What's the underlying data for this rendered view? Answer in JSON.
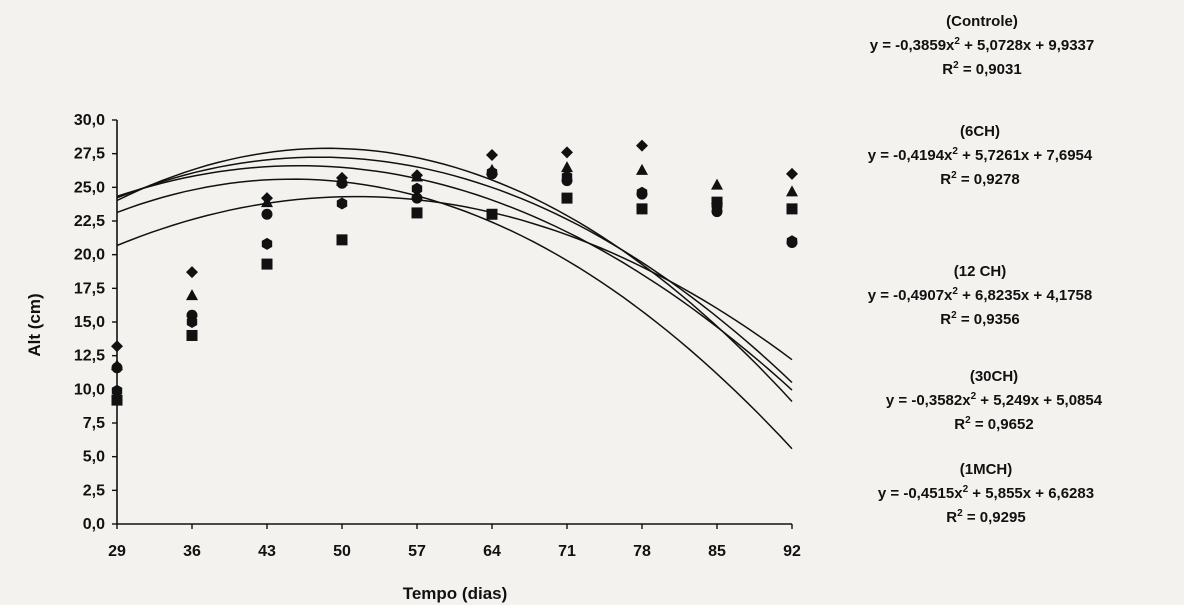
{
  "chart_data": {
    "type": "scatter",
    "xlabel": "Tempo (dias)",
    "ylabel": "Alt (cm)",
    "x_ticks": [
      "29",
      "36",
      "43",
      "50",
      "57",
      "64",
      "71",
      "78",
      "85",
      "92"
    ],
    "y_ticks": [
      "0,0",
      "2,5",
      "5,0",
      "7,5",
      "10,0",
      "12,5",
      "15,0",
      "17,5",
      "20,0",
      "22,5",
      "25,0",
      "27,5",
      "30,0"
    ],
    "xlim": [
      29,
      92
    ],
    "ylim": [
      0,
      30
    ],
    "grid": false,
    "x": [
      29,
      36,
      43,
      50,
      57,
      64,
      71,
      78,
      85,
      92
    ],
    "series": [
      {
        "name": "Controle",
        "marker": "diamond",
        "values": [
          13.2,
          18.7,
          24.2,
          25.7,
          25.9,
          27.4,
          27.6,
          28.1,
          23.8,
          26.0
        ],
        "fit": {
          "a": -0.3859,
          "b": 5.0728,
          "c": 9.9337
        },
        "equation_label": "y = -0,3859x",
        "equation_rest": " + 5,0728x + 9,9337",
        "r2_label": "R",
        "r2_value": " = 0,9031"
      },
      {
        "name": "6CH",
        "marker": "triangle",
        "values": [
          11.8,
          17.0,
          23.9,
          25.5,
          25.8,
          26.3,
          26.5,
          26.3,
          25.2,
          24.7
        ],
        "fit": {
          "a": -0.4194,
          "b": 5.7261,
          "c": 7.6954
        },
        "equation_label": "y = -0,4194x",
        "equation_rest": " + 5,7261x + 7,6954",
        "r2_label": "R",
        "r2_value": " = 0,9278"
      },
      {
        "name": "12 CH",
        "marker": "circle",
        "values": [
          11.6,
          15.5,
          23.0,
          25.3,
          24.2,
          26.0,
          25.5,
          24.5,
          23.2,
          20.9
        ],
        "fit": {
          "a": -0.4907,
          "b": 6.8235,
          "c": 4.1758
        },
        "equation_label": "y = -0,4907x",
        "equation_rest": " + 6,8235x + 4,1758",
        "r2_label": "R",
        "r2_value": " = 0,9356"
      },
      {
        "name": "30CH",
        "marker": "hexagon",
        "values": [
          9.9,
          15.0,
          20.8,
          23.8,
          24.9,
          26.1,
          25.8,
          24.6,
          23.5,
          21.0
        ],
        "fit": {
          "a": -0.3582,
          "b": 5.249,
          "c": 5.0854
        },
        "equation_label": "y = -0,3582x",
        "equation_rest": " + 5,249x + 5,0854",
        "r2_label": "R",
        "r2_value": " = 0,9652"
      },
      {
        "name": "1MCH",
        "marker": "square",
        "values": [
          9.2,
          14.0,
          19.3,
          21.1,
          23.1,
          23.0,
          24.2,
          23.4,
          23.9,
          23.4
        ],
        "fit": {
          "a": -0.4515,
          "b": 5.855,
          "c": 6.6283
        },
        "equation_label": "y = -0,4515x",
        "equation_rest": " + 5,855x + 6,6283",
        "r2_label": "R",
        "r2_value": " = 0,9295"
      }
    ]
  },
  "annotations": [
    {
      "title": "(Controle)"
    },
    {
      "title": "(6CH)"
    },
    {
      "title": "(12 CH)"
    },
    {
      "title": "(30CH)"
    },
    {
      "title": "(1MCH)"
    }
  ],
  "superscript": "2",
  "colors": {
    "ink": "#111111",
    "paper": "#f3f2ee",
    "bleed": "#cfcdc6"
  }
}
